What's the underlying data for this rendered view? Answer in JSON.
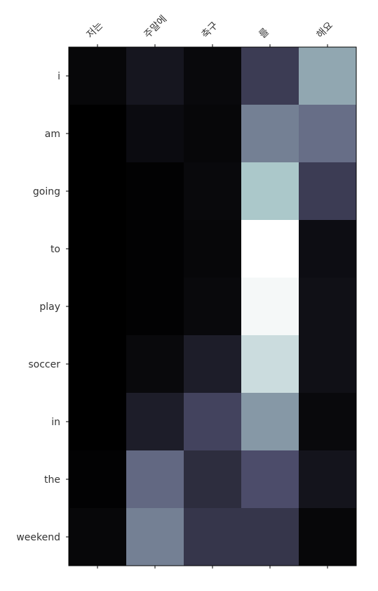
{
  "chart_data": {
    "type": "heatmap",
    "title": "",
    "xlabel": "",
    "ylabel": "",
    "x_categories": [
      "저는",
      "주말에",
      "축구",
      "를",
      "해요"
    ],
    "y_categories": [
      "i",
      "am",
      "going",
      "to",
      "play",
      "soccer",
      "in",
      "the",
      "weekend"
    ],
    "x_axis_position": "top",
    "x_tick_rotation_deg": 45,
    "grid": false,
    "legend": "none",
    "colormap": "bone",
    "value_range": [
      0,
      1
    ],
    "values": [
      [
        0.03,
        0.1,
        0.04,
        0.27,
        0.65
      ],
      [
        0.0,
        0.05,
        0.03,
        0.52,
        0.46
      ],
      [
        0.0,
        0.01,
        0.04,
        0.76,
        0.27
      ],
      [
        0.0,
        0.01,
        0.03,
        1.0,
        0.06
      ],
      [
        0.0,
        0.01,
        0.04,
        0.97,
        0.07
      ],
      [
        0.0,
        0.04,
        0.13,
        0.85,
        0.07
      ],
      [
        0.0,
        0.13,
        0.3,
        0.6,
        0.04
      ],
      [
        0.01,
        0.44,
        0.2,
        0.34,
        0.09
      ],
      [
        0.03,
        0.52,
        0.24,
        0.24,
        0.03
      ]
    ]
  }
}
